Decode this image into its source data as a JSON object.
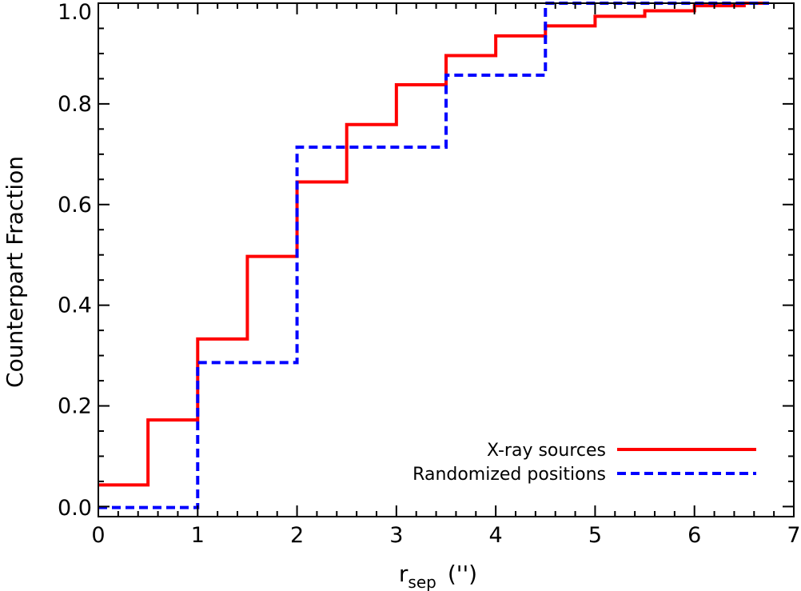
{
  "chart_data": {
    "type": "line",
    "step": true,
    "xlabel_main": "r",
    "xlabel_sub": "sep",
    "xlabel_unit": "('')",
    "ylabel": "Counterpart Fraction",
    "xlim": [
      0,
      7
    ],
    "ylim": [
      -0.02,
      1.0
    ],
    "xticks": [
      0,
      1,
      2,
      3,
      4,
      5,
      6,
      7
    ],
    "yticks": [
      0.0,
      0.2,
      0.4,
      0.6,
      0.8,
      1.0
    ],
    "xtick_labels": [
      "0",
      "1",
      "2",
      "3",
      "4",
      "5",
      "6",
      "7"
    ],
    "ytick_labels": [
      "0.0",
      "0.2",
      "0.4",
      "0.6",
      "0.8",
      "1.0"
    ],
    "grid": false,
    "legend_position": "bottom-right",
    "series": [
      {
        "name": "X-ray sources",
        "color": "#ff0000",
        "style": "solid",
        "x": [
          0,
          0.5,
          1.0,
          1.5,
          2.0,
          2.5,
          3.0,
          3.5,
          4.0,
          4.5,
          5.0,
          5.5,
          6.0,
          6.5,
          6.75
        ],
        "y": [
          0.043,
          0.172,
          0.333,
          0.497,
          0.645,
          0.759,
          0.838,
          0.896,
          0.935,
          0.955,
          0.974,
          0.985,
          0.995,
          1.0,
          1.0
        ]
      },
      {
        "name": "Randomized positions",
        "color": "#0000ff",
        "style": "dashed",
        "x": [
          0,
          1.0,
          2.0,
          3.5,
          4.5,
          6.75
        ],
        "y": [
          -0.002,
          0.286,
          0.714,
          0.857,
          1.0,
          1.0
        ]
      }
    ]
  }
}
